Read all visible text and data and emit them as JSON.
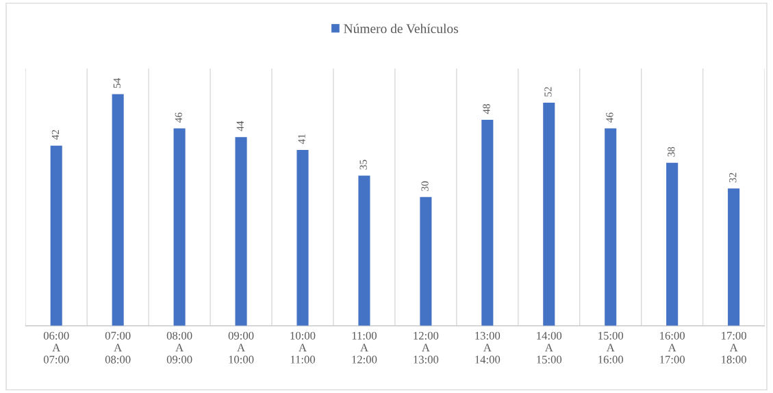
{
  "chart_data": {
    "type": "bar",
    "categories": [
      "06:00\nA\n07:00",
      "07:00\nA\n08:00",
      "08:00\nA\n09:00",
      "09:00\nA\n10:00",
      "10:00\nA\n11:00",
      "11:00\nA\n12:00",
      "12:00\nA\n13:00",
      "13:00\nA\n14:00",
      "14:00\nA\n15:00",
      "15:00\nA\n16:00",
      "16:00\nA\n17:00",
      "17:00\nA\n18:00"
    ],
    "series": [
      {
        "name": "Número de Vehículos",
        "color": "#4472c4",
        "values": [
          42,
          54,
          46,
          44,
          41,
          35,
          30,
          48,
          52,
          46,
          38,
          32
        ]
      }
    ],
    "ylim": [
      0,
      60
    ],
    "tick_labels": "x",
    "data_labels": true,
    "grid": "x",
    "legend": "top"
  }
}
